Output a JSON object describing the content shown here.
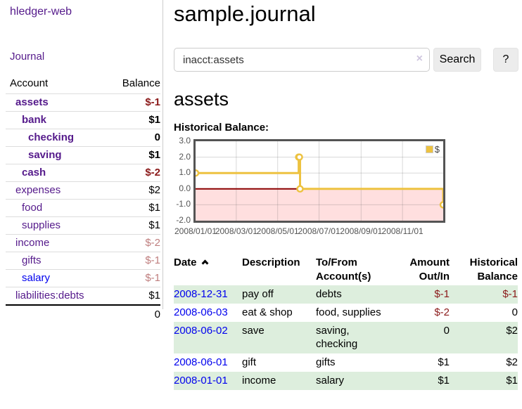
{
  "app": {
    "title": "hledger-web",
    "nav_journal": "Journal"
  },
  "colors": {
    "link_purple": "#551a8b",
    "link_blue": "#0000ee",
    "negative_strong": "#8b1a1a",
    "negative_soft": "#bf7e7e",
    "row_green": "#ddeedd",
    "chart_line": "#edc240",
    "chart_negative_fill": "#ffdfdf",
    "chart_zero_line": "#8b0000"
  },
  "sidebar": {
    "col_account": "Account",
    "col_balance": "Balance",
    "accounts": [
      {
        "name": "assets",
        "indent": 1,
        "bold": true,
        "balance": "$-1",
        "balance_style": "neg-strong",
        "link": "visited"
      },
      {
        "name": "bank",
        "indent": 2,
        "bold": true,
        "balance": "$1",
        "balance_style": "normal",
        "link": "visited"
      },
      {
        "name": "checking",
        "indent": 3,
        "bold": true,
        "balance": "0",
        "balance_style": "normal",
        "link": "visited"
      },
      {
        "name": "saving",
        "indent": 3,
        "bold": true,
        "balance": "$1",
        "balance_style": "normal",
        "link": "visited"
      },
      {
        "name": "cash",
        "indent": 2,
        "bold": true,
        "balance": "$-2",
        "balance_style": "neg-strong",
        "link": "visited"
      },
      {
        "name": "expenses",
        "indent": 1,
        "bold": false,
        "balance": "$2",
        "balance_style": "normal",
        "link": "visited"
      },
      {
        "name": "food",
        "indent": 2,
        "bold": false,
        "balance": "$1",
        "balance_style": "normal",
        "link": "visited"
      },
      {
        "name": "supplies",
        "indent": 2,
        "bold": false,
        "balance": "$1",
        "balance_style": "normal",
        "link": "visited"
      },
      {
        "name": "income",
        "indent": 1,
        "bold": false,
        "balance": "$-2",
        "balance_style": "neg-soft",
        "link": "visited"
      },
      {
        "name": "gifts",
        "indent": 2,
        "bold": false,
        "balance": "$-1",
        "balance_style": "neg-soft",
        "link": "visited"
      },
      {
        "name": "salary",
        "indent": 2,
        "bold": false,
        "balance": "$-1",
        "balance_style": "neg-soft",
        "link": "unvisited"
      },
      {
        "name": "liabilities:debts",
        "indent": 1,
        "bold": false,
        "balance": "$1",
        "balance_style": "normal",
        "link": "visited"
      }
    ],
    "total": "0"
  },
  "header": {
    "title": "sample.journal"
  },
  "search": {
    "query": "inacct:assets",
    "clear_icon": "×",
    "button": "Search",
    "help_button": "?"
  },
  "main": {
    "account_title": "assets",
    "chart_label": "Historical Balance:"
  },
  "chart_data": {
    "type": "line",
    "title": "Historical Balance:",
    "step": true,
    "series": [
      {
        "name": "$",
        "color": "#edc240",
        "points": [
          {
            "x": "2008-01-01",
            "y": 1
          },
          {
            "x": "2008-06-01",
            "y": 2
          },
          {
            "x": "2008-06-02",
            "y": 2
          },
          {
            "x": "2008-06-03",
            "y": 0
          },
          {
            "x": "2008-12-31",
            "y": -1
          }
        ]
      }
    ],
    "xlim": [
      "2008-01-01",
      "2008-12-31"
    ],
    "ylim": [
      -2,
      3
    ],
    "yticks": [
      3.0,
      2.0,
      1.0,
      0.0,
      -1.0,
      -2.0
    ],
    "xticks": [
      "2008/01/01",
      "2008/03/01",
      "2008/05/01",
      "2008/07/01",
      "2008/09/01",
      "2008/11/01"
    ],
    "grid": true,
    "legend_position": "top-right",
    "negative_region_color": "#ffdfdf",
    "zero_line_color": "#8b0000"
  },
  "register": {
    "columns": {
      "date": "Date",
      "description": "Description",
      "account_line1": "To/From",
      "account_line2": "Account(s)",
      "amount_line1": "Amount",
      "amount_line2": "Out/In",
      "balance_line1": "Historical",
      "balance_line2": "Balance"
    },
    "rows": [
      {
        "date": "2008-12-31",
        "description": "pay off",
        "accounts": "debts",
        "amount": "$-1",
        "balance": "$-1"
      },
      {
        "date": "2008-06-03",
        "description": "eat & shop",
        "accounts": "food, supplies",
        "amount": "$-2",
        "balance": "0"
      },
      {
        "date": "2008-06-02",
        "description": "save",
        "accounts": "saving, checking",
        "amount": "0",
        "balance": "$2"
      },
      {
        "date": "2008-06-01",
        "description": "gift",
        "accounts": "gifts",
        "amount": "$1",
        "balance": "$2"
      },
      {
        "date": "2008-01-01",
        "description": "income",
        "accounts": "salary",
        "amount": "$1",
        "balance": "$1"
      }
    ]
  }
}
